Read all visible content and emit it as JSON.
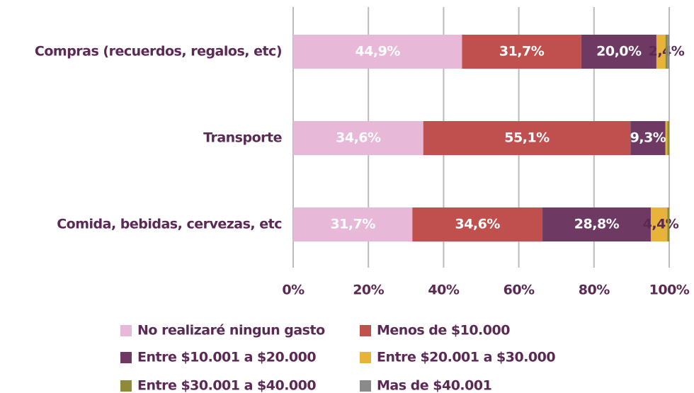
{
  "chart_data": {
    "type": "stacked-bar-horizontal",
    "categories": [
      "Compras (recuerdos, regalos, etc)",
      "Transporte",
      "Comida, bebidas, cervezas, etc"
    ],
    "series": [
      {
        "name": "No realizaré ningun gasto",
        "color": "#e8b8d8",
        "values": [
          44.9,
          34.6,
          31.7
        ],
        "value_labels": [
          "44,9%",
          "34,6%",
          "31,7%"
        ]
      },
      {
        "name": "Menos de $10.000",
        "color": "#c0504d",
        "values": [
          31.7,
          55.1,
          34.6
        ],
        "value_labels": [
          "31,7%",
          "55,1%",
          "34,6%"
        ]
      },
      {
        "name": "Entre $10.001 a $20.000",
        "color": "#6e3a63",
        "values": [
          20.0,
          9.3,
          28.8
        ],
        "value_labels": [
          "20,0%",
          "9,3%",
          "28,8%"
        ]
      },
      {
        "name": "Entre $20.001 a $30.000",
        "color": "#e8b33a",
        "values": [
          2.4,
          0.5,
          4.4
        ],
        "value_labels": [
          "2,4%",
          null,
          "4,4%"
        ]
      },
      {
        "name": "Entre $30.001 a $40.000",
        "color": "#8f8a3a",
        "values": [
          0.5,
          0.5,
          0.5
        ],
        "value_labels": [
          null,
          null,
          null
        ]
      },
      {
        "name": "Mas de $40.001",
        "color": "#8a8a8a",
        "values": [
          0.5,
          0,
          0
        ],
        "value_labels": [
          null,
          null,
          null
        ]
      }
    ],
    "xlim": [
      0,
      100
    ],
    "xticks": [
      {
        "value": 0,
        "label": "0%"
      },
      {
        "value": 20,
        "label": "20%"
      },
      {
        "value": 40,
        "label": "40%"
      },
      {
        "value": 60,
        "label": "60%"
      },
      {
        "value": 80,
        "label": "80%"
      },
      {
        "value": 100,
        "label": "100%"
      }
    ],
    "grid": true
  }
}
